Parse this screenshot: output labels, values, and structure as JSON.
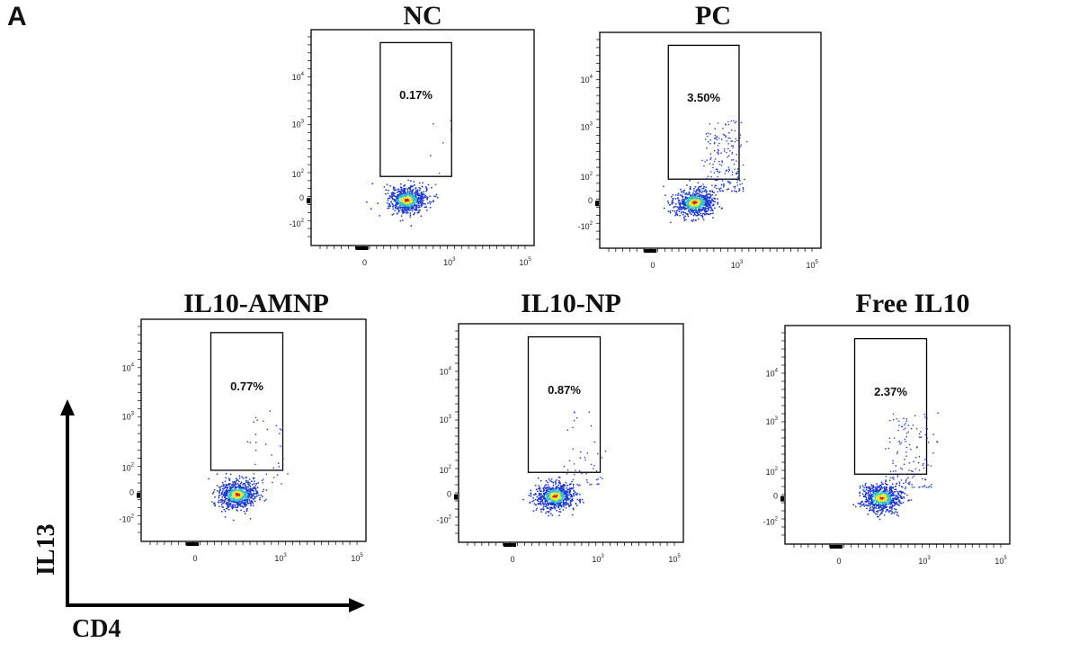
{
  "figure": {
    "panel_label": "A",
    "x_axis_label": "CD4",
    "y_axis_label": "IL13"
  },
  "colors": {
    "plot_frame": "#000000",
    "gate": "#000000",
    "density_low": "#1f3ad1",
    "density_mid": "#2fc3c8",
    "density_high": "#e8e82a",
    "density_peak": "#e21b1b",
    "arrow": "#000000"
  },
  "chart_data": [
    {
      "type": "scatter",
      "title": "NC",
      "gate_percent": "0.17%",
      "x_ticks": [
        "0",
        "10^3",
        "10^5"
      ],
      "y_ticks": [
        "10^4",
        "10^3",
        "10^2",
        "0",
        "-10^2"
      ],
      "gate_event_density": 0.17
    },
    {
      "type": "scatter",
      "title": "PC",
      "gate_percent": "3.50%",
      "x_ticks": [
        "0",
        "10^3",
        "10^5"
      ],
      "y_ticks": [
        "10^4",
        "10^3",
        "10^2",
        "0",
        "-10^2"
      ],
      "gate_event_density": 3.5
    },
    {
      "type": "scatter",
      "title": "IL10-AMNP",
      "gate_percent": "0.77%",
      "x_ticks": [
        "0",
        "10^3",
        "10^5"
      ],
      "y_ticks": [
        "10^4",
        "10^3",
        "10^2",
        "0",
        "-10^2"
      ],
      "gate_event_density": 0.77
    },
    {
      "type": "scatter",
      "title": "IL10-NP",
      "gate_percent": "0.87%",
      "x_ticks": [
        "0",
        "10^3",
        "10^5"
      ],
      "y_ticks": [
        "10^4",
        "10^3",
        "10^2",
        "0",
        "-10^2"
      ],
      "gate_event_density": 0.87
    },
    {
      "type": "scatter",
      "title": "Free IL10",
      "gate_percent": "2.37%",
      "x_ticks": [
        "0",
        "10^3",
        "10^5"
      ],
      "y_ticks": [
        "10^4",
        "10^3",
        "10^2",
        "0",
        "-10^2"
      ],
      "gate_event_density": 2.37
    }
  ]
}
